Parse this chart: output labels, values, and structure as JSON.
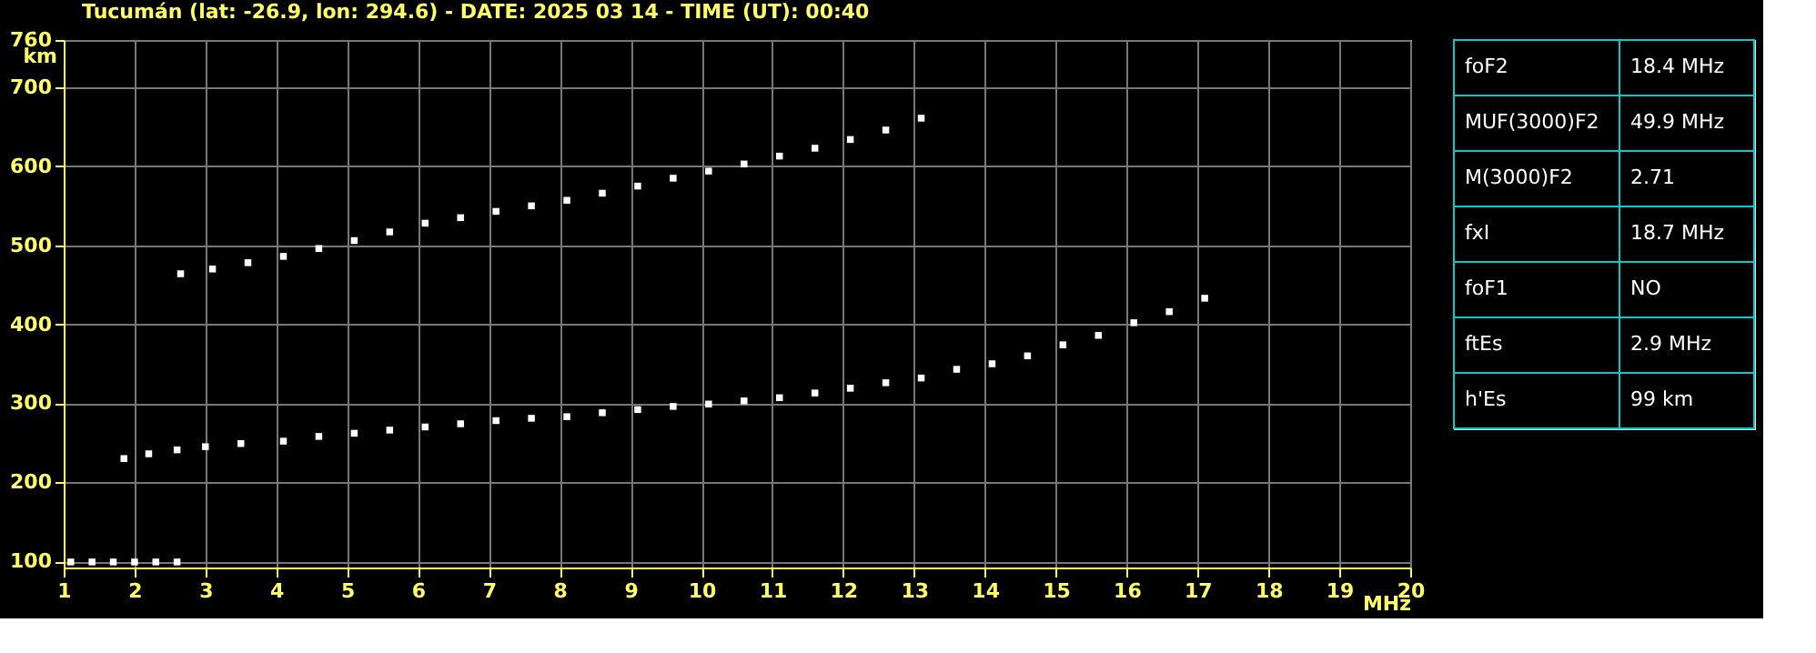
{
  "chart_data": [
    {
      "type": "scatter",
      "title": "Tucumán (lat: -26.9, lon: 294.6) - DATE: 2025 03 14 - TIME (UT): 00:40",
      "xlabel": "MHz",
      "ylabel": "km",
      "xlim": [
        1,
        20
      ],
      "ylim": [
        92,
        760
      ],
      "xticks": [
        1,
        2,
        3,
        4,
        5,
        6,
        7,
        8,
        9,
        10,
        11,
        12,
        13,
        14,
        15,
        16,
        17,
        18,
        19,
        20
      ],
      "yticks": [
        100,
        200,
        300,
        400,
        500,
        600,
        700,
        760
      ],
      "grid": true,
      "marker": "square",
      "legend": false,
      "series": [
        {
          "color": "#ffffff",
          "x": [
            1.85,
            2.2,
            2.6,
            3.0,
            3.5,
            4.1,
            4.6,
            5.1,
            5.6,
            6.1,
            6.6,
            7.1,
            7.6,
            8.1,
            8.6,
            9.1,
            9.6,
            10.1,
            10.6,
            11.1,
            11.6,
            12.1,
            12.6,
            13.1,
            13.6,
            14.1,
            14.6,
            15.1,
            15.6,
            16.1,
            16.6,
            17.1
          ],
          "values": [
            230,
            236,
            241,
            245,
            249,
            252,
            258,
            262,
            266,
            270,
            274,
            278,
            281,
            283,
            288,
            292,
            296,
            299,
            303,
            307,
            313,
            319,
            326,
            332,
            343,
            350,
            360,
            374,
            386,
            402,
            416,
            433
          ]
        },
        {
          "color": "#ffffff",
          "x": [
            2.65,
            3.1,
            3.6,
            4.1,
            4.6,
            5.1,
            5.6,
            6.1,
            6.6,
            7.1,
            7.6,
            8.1,
            8.6,
            9.1,
            9.6,
            10.1,
            10.6,
            11.1,
            11.6,
            12.1,
            12.6,
            13.1
          ],
          "values": [
            464,
            470,
            478,
            486,
            496,
            506,
            517,
            528,
            535,
            543,
            550,
            557,
            566,
            575,
            585,
            594,
            603,
            613,
            623,
            634,
            646,
            661
          ]
        },
        {
          "color": "#ffffff",
          "x": [
            1.1,
            1.4,
            1.7,
            2.0,
            2.3,
            2.6
          ],
          "values": [
            99,
            99,
            99,
            99,
            99,
            99
          ]
        }
      ]
    },
    {
      "type": "other",
      "annotations": [
        "foF2",
        "18.4 MHz",
        "MUF(3000)F2",
        "49.9 MHz",
        "M(3000)F2",
        "2.71",
        "fxI",
        "18.7 MHz",
        "foF1",
        "NO",
        "ftEs",
        "2.9 MHz",
        "h'Es",
        "99 km"
      ]
    }
  ]
}
